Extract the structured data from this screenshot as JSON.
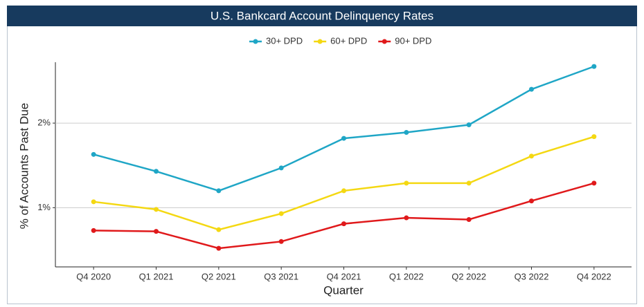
{
  "chart_data": {
    "type": "line",
    "title": "U.S. Bankcard Account Delinquency Rates",
    "x_label": "Quarter",
    "y_label": "% of Accounts Past Due",
    "categories": [
      "Q4 2020",
      "Q1 2021",
      "Q2 2021",
      "Q3 2021",
      "Q4 2021",
      "Q1 2022",
      "Q2 2022",
      "Q3 2022",
      "Q4 2022"
    ],
    "series": [
      {
        "name": "30+ DPD",
        "color": "#1fa6c6",
        "values": [
          1.63,
          1.43,
          1.2,
          1.47,
          1.82,
          1.89,
          1.98,
          2.4,
          2.67
        ]
      },
      {
        "name": "60+ DPD",
        "color": "#f4d812",
        "values": [
          1.07,
          0.98,
          0.74,
          0.93,
          1.2,
          1.29,
          1.29,
          1.61,
          1.84
        ]
      },
      {
        "name": "90+ DPD",
        "color": "#e0191b",
        "values": [
          0.73,
          0.72,
          0.52,
          0.6,
          0.81,
          0.88,
          0.86,
          1.08,
          1.29
        ]
      }
    ],
    "ylim": [
      0.3,
      2.72
    ],
    "yticks": [
      {
        "value": 1,
        "label": "1%"
      },
      {
        "value": 2,
        "label": "2%"
      }
    ],
    "grid": true,
    "legend": "top"
  }
}
